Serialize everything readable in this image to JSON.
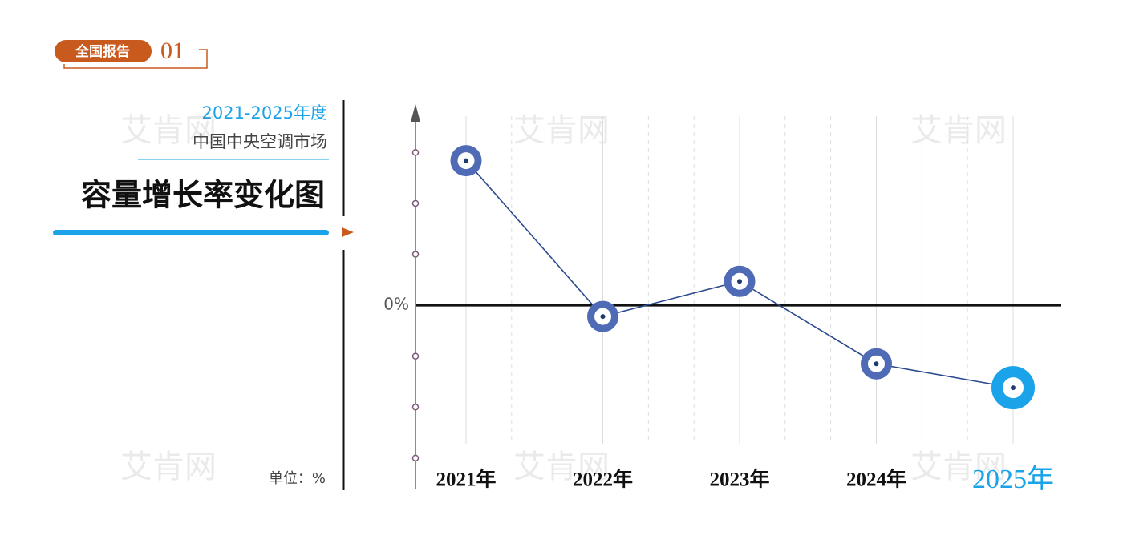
{
  "chart_data": {
    "type": "line",
    "badge": "全国报告",
    "badge_number": "01",
    "subtitle": "2021-2025年度",
    "subtitle2": "中国中央空调市场",
    "title": "容量增长率变化图",
    "unit_label": "单位：%",
    "watermark": "艾肯网",
    "categories": [
      "2021年",
      "2022年",
      "2023年",
      "2024年",
      "2025年"
    ],
    "series": [
      {
        "color": "#4f6bb5",
        "values": [
          2.84,
          -0.22,
          0.47,
          -1.15,
          -1.62
        ]
      }
    ],
    "line_color": "#2b4a8e",
    "highlight_color": "#1aa3e8",
    "ylim": [
      -3.6,
      3.95
    ],
    "yticks": [
      {
        "value": 0,
        "label": "0%"
      }
    ],
    "yminor": [
      -3,
      -2,
      -1,
      1,
      2,
      3
    ],
    "grid": true
  }
}
